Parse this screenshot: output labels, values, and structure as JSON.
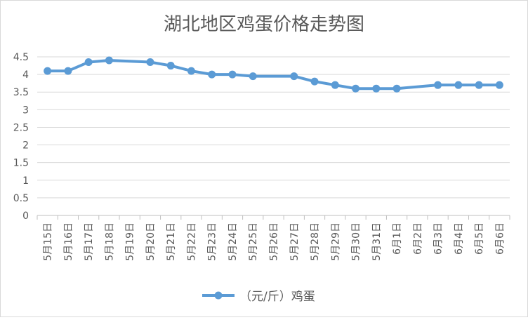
{
  "chart_data": {
    "type": "line",
    "title": "湖北地区鸡蛋价格走势图",
    "xlabel": "",
    "ylabel": "",
    "categories": [
      "5月15日",
      "5月16日",
      "5月17日",
      "5月18日",
      "5月19日",
      "5月20日",
      "5月21日",
      "5月22日",
      "5月23日",
      "5月24日",
      "5月25日",
      "5月26日",
      "5月27日",
      "5月28日",
      "5月29日",
      "5月30日",
      "5月31日",
      "6月1日",
      "6月2日",
      "6月3日",
      "6月4日",
      "6月5日",
      "6月6日"
    ],
    "series": [
      {
        "name": "（元/斤）鸡蛋",
        "values": [
          4.1,
          4.1,
          4.35,
          4.4,
          null,
          4.35,
          4.25,
          4.1,
          4.0,
          4.0,
          3.95,
          null,
          3.95,
          3.8,
          3.7,
          3.6,
          3.6,
          3.6,
          null,
          3.7,
          3.7,
          3.7,
          3.7
        ]
      }
    ],
    "ylim": [
      0,
      4.5
    ],
    "yticks": [
      "0",
      "0.5",
      "1",
      "1.5",
      "2",
      "2.5",
      "3",
      "3.5",
      "4",
      "4.5"
    ],
    "grid": true,
    "legend_position": "bottom",
    "colors": {
      "series": "#5b9bd5",
      "grid": "#d9d9d9",
      "text": "#595959"
    }
  }
}
